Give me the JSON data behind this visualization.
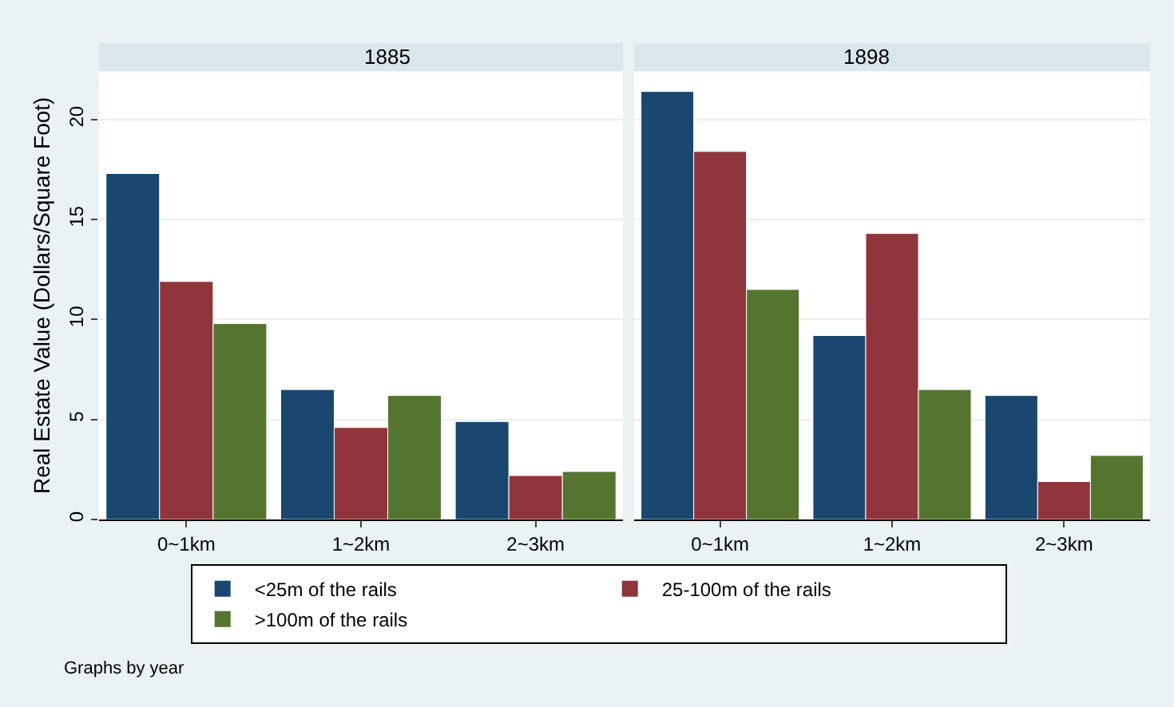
{
  "chart_data": [
    {
      "type": "bar",
      "title": "1885",
      "ylabel": "Real Estate Value (Dollars/Square Foot)",
      "categories": [
        "0~1km",
        "1~2km",
        "2~3km"
      ],
      "series": [
        {
          "name": "<25m of the rails",
          "color": "#1a476f",
          "values": [
            17.3,
            6.5,
            4.9
          ]
        },
        {
          "name": "25-100m of the rails",
          "color": "#90353b",
          "values": [
            11.9,
            4.6,
            2.2
          ]
        },
        {
          "name": ">100m of the rails",
          "color": "#55752f",
          "values": [
            9.8,
            6.2,
            2.4
          ]
        }
      ],
      "ylim": [
        0,
        22.4
      ],
      "yticks": [
        0,
        5,
        10,
        15,
        20
      ],
      "grid": "y",
      "legend": "bottom",
      "annotations": [
        "Graphs by year"
      ]
    },
    {
      "type": "bar",
      "title": "1898",
      "categories": [
        "0~1km",
        "1~2km",
        "2~3km"
      ],
      "series": [
        {
          "color": "#1a476f",
          "values": [
            21.4,
            9.2,
            6.2
          ]
        },
        {
          "color": "#90353b",
          "values": [
            18.4,
            14.3,
            1.9
          ]
        },
        {
          "color": "#55752f",
          "values": [
            11.5,
            6.5,
            3.2
          ]
        }
      ],
      "ylim": [
        0,
        22.4
      ],
      "yticks": [
        0,
        5,
        10,
        15,
        20
      ],
      "grid": "y",
      "tick_labels": "x"
    }
  ]
}
